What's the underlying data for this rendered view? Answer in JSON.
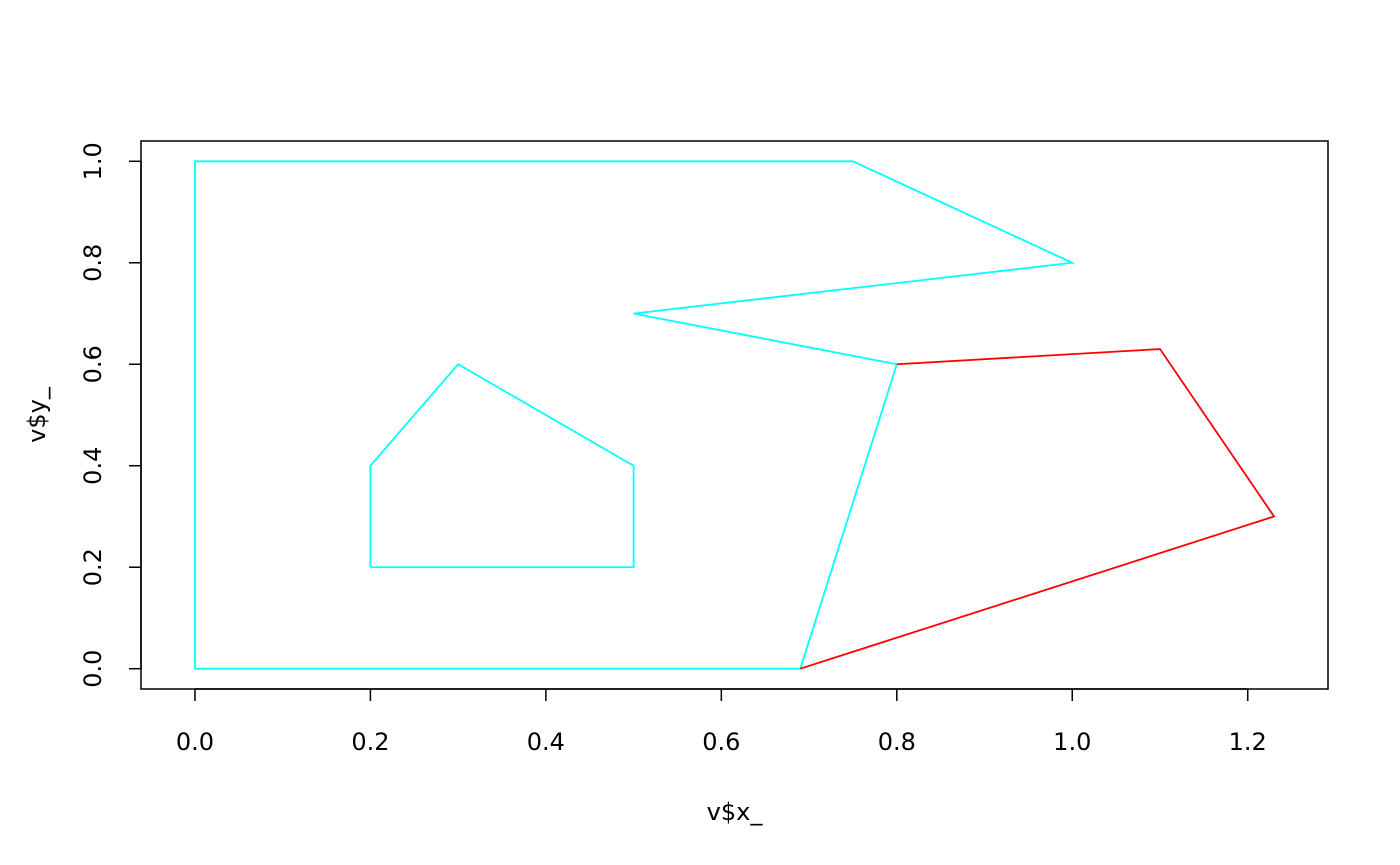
{
  "chart_data": {
    "type": "line",
    "xlabel": "v$x_",
    "ylabel": "v$y_",
    "xlim": [
      -0.0615,
      1.2915
    ],
    "ylim": [
      -0.04,
      1.04
    ],
    "x_ticks": [
      0.0,
      0.2,
      0.4,
      0.6,
      0.8,
      1.0,
      1.2
    ],
    "x_tick_labels": [
      "0.0",
      "0.2",
      "0.4",
      "0.6",
      "0.8",
      "1.0",
      "1.2"
    ],
    "y_ticks": [
      0.0,
      0.2,
      0.4,
      0.6,
      0.8,
      1.0
    ],
    "y_tick_labels": [
      "0.0",
      "0.2",
      "0.4",
      "0.6",
      "0.8",
      "1.0"
    ],
    "grid": false,
    "series": [
      {
        "color": "#00ffff",
        "points": [
          [
            0.0,
            0.0
          ],
          [
            0.0,
            1.0
          ],
          [
            0.75,
            1.0
          ],
          [
            1.0,
            0.8
          ],
          [
            0.5,
            0.7
          ],
          [
            0.8,
            0.6
          ],
          [
            0.69,
            0.0
          ],
          [
            0.0,
            0.0
          ]
        ]
      },
      {
        "color": "#00ffff",
        "points": [
          [
            0.2,
            0.2
          ],
          [
            0.2,
            0.4
          ],
          [
            0.3,
            0.6
          ],
          [
            0.5,
            0.4
          ],
          [
            0.5,
            0.2
          ],
          [
            0.2,
            0.2
          ]
        ]
      },
      {
        "color": "#ff0000",
        "points": [
          [
            0.8,
            0.6
          ],
          [
            1.1,
            0.63
          ],
          [
            1.23,
            0.3
          ],
          [
            0.69,
            0.0
          ]
        ]
      }
    ]
  }
}
